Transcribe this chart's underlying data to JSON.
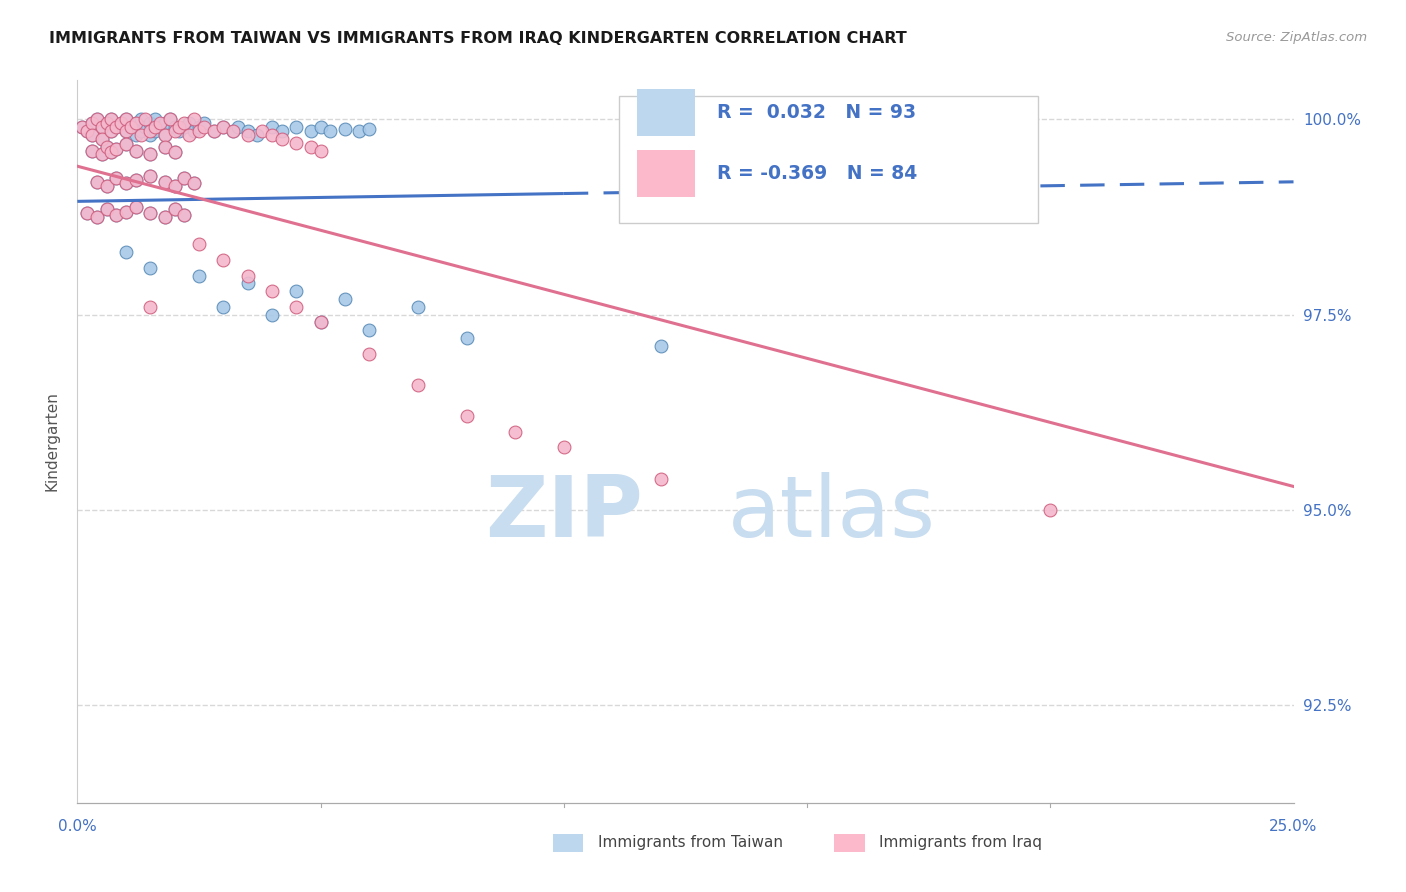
{
  "title": "IMMIGRANTS FROM TAIWAN VS IMMIGRANTS FROM IRAQ KINDERGARTEN CORRELATION CHART",
  "source_text": "Source: ZipAtlas.com",
  "ylabel": "Kindergarten",
  "xlim": [
    0.0,
    0.25
  ],
  "ylim": [
    0.9125,
    1.005
  ],
  "y_ticks": [
    0.925,
    0.95,
    0.975,
    1.0
  ],
  "x_ticks": [
    0.0,
    0.05,
    0.1,
    0.15,
    0.2,
    0.25
  ],
  "taiwan_R": 0.032,
  "taiwan_N": 93,
  "iraq_R": -0.369,
  "iraq_N": 84,
  "taiwan_color": "#A8C8E8",
  "taiwan_edge_color": "#5B8DB8",
  "iraq_color": "#F5B8CC",
  "iraq_edge_color": "#D06080",
  "taiwan_line_color": "#4472C4",
  "iraq_line_color": "#E07090",
  "legend_taiwan_box": "#BDD7EE",
  "legend_iraq_box": "#FCB9CC",
  "taiwan_line_y0": 0.9895,
  "taiwan_line_y1": 0.992,
  "iraq_line_y0": 0.994,
  "iraq_line_y1": 0.953,
  "taiwan_x": [
    0.001,
    0.002,
    0.003,
    0.003,
    0.004,
    0.005,
    0.005,
    0.006,
    0.007,
    0.007,
    0.008,
    0.009,
    0.01,
    0.01,
    0.011,
    0.012,
    0.012,
    0.013,
    0.013,
    0.014,
    0.015,
    0.015,
    0.016,
    0.016,
    0.017,
    0.018,
    0.018,
    0.019,
    0.02,
    0.021,
    0.022,
    0.023,
    0.024,
    0.025,
    0.026,
    0.028,
    0.03,
    0.032,
    0.033,
    0.035,
    0.037,
    0.04,
    0.042,
    0.045,
    0.048,
    0.05,
    0.052,
    0.055,
    0.058,
    0.06,
    0.003,
    0.005,
    0.006,
    0.007,
    0.008,
    0.01,
    0.012,
    0.015,
    0.018,
    0.02,
    0.004,
    0.006,
    0.008,
    0.01,
    0.012,
    0.015,
    0.018,
    0.02,
    0.022,
    0.024,
    0.002,
    0.004,
    0.006,
    0.008,
    0.01,
    0.012,
    0.015,
    0.018,
    0.02,
    0.022,
    0.05,
    0.08,
    0.12,
    0.03,
    0.04,
    0.06,
    0.01,
    0.015,
    0.025,
    0.035,
    0.045,
    0.055,
    0.07
  ],
  "taiwan_y": [
    0.999,
    0.9985,
    0.9995,
    0.998,
    1.0,
    0.999,
    0.9975,
    0.9995,
    1.0,
    0.9985,
    0.999,
    0.9995,
    1.0,
    0.9985,
    0.999,
    0.9995,
    0.998,
    1.0,
    0.9985,
    0.999,
    0.9995,
    0.998,
    1.0,
    0.9985,
    0.999,
    0.9995,
    0.998,
    1.0,
    0.999,
    0.9985,
    0.999,
    0.9995,
    0.9985,
    0.999,
    0.9995,
    0.9985,
    0.999,
    0.9985,
    0.999,
    0.9985,
    0.998,
    0.999,
    0.9985,
    0.999,
    0.9985,
    0.999,
    0.9985,
    0.9988,
    0.9985,
    0.9988,
    0.996,
    0.9955,
    0.9965,
    0.9958,
    0.9962,
    0.9968,
    0.996,
    0.9955,
    0.9965,
    0.9958,
    0.992,
    0.9915,
    0.9925,
    0.9918,
    0.9922,
    0.9928,
    0.992,
    0.9915,
    0.9925,
    0.9918,
    0.988,
    0.9875,
    0.9885,
    0.9878,
    0.9882,
    0.9888,
    0.988,
    0.9875,
    0.9885,
    0.9878,
    0.974,
    0.972,
    0.971,
    0.976,
    0.975,
    0.973,
    0.983,
    0.981,
    0.98,
    0.979,
    0.978,
    0.977,
    0.976
  ],
  "iraq_x": [
    0.001,
    0.002,
    0.003,
    0.003,
    0.004,
    0.005,
    0.005,
    0.006,
    0.007,
    0.007,
    0.008,
    0.009,
    0.01,
    0.01,
    0.011,
    0.012,
    0.013,
    0.014,
    0.015,
    0.016,
    0.017,
    0.018,
    0.019,
    0.02,
    0.021,
    0.022,
    0.023,
    0.024,
    0.025,
    0.026,
    0.028,
    0.03,
    0.032,
    0.035,
    0.038,
    0.04,
    0.042,
    0.045,
    0.048,
    0.05,
    0.003,
    0.005,
    0.006,
    0.007,
    0.008,
    0.01,
    0.012,
    0.015,
    0.018,
    0.02,
    0.004,
    0.006,
    0.008,
    0.01,
    0.012,
    0.015,
    0.018,
    0.02,
    0.022,
    0.024,
    0.002,
    0.004,
    0.006,
    0.008,
    0.01,
    0.012,
    0.015,
    0.018,
    0.02,
    0.022,
    0.025,
    0.03,
    0.035,
    0.04,
    0.045,
    0.05,
    0.06,
    0.07,
    0.08,
    0.09,
    0.1,
    0.12,
    0.2,
    0.015
  ],
  "iraq_y": [
    0.999,
    0.9985,
    0.9995,
    0.998,
    1.0,
    0.999,
    0.9975,
    0.9995,
    1.0,
    0.9985,
    0.999,
    0.9995,
    1.0,
    0.9985,
    0.999,
    0.9995,
    0.998,
    1.0,
    0.9985,
    0.999,
    0.9995,
    0.998,
    1.0,
    0.9985,
    0.999,
    0.9995,
    0.998,
    1.0,
    0.9985,
    0.999,
    0.9985,
    0.999,
    0.9985,
    0.998,
    0.9985,
    0.998,
    0.9975,
    0.997,
    0.9965,
    0.996,
    0.996,
    0.9955,
    0.9965,
    0.9958,
    0.9962,
    0.9968,
    0.996,
    0.9955,
    0.9965,
    0.9958,
    0.992,
    0.9915,
    0.9925,
    0.9918,
    0.9922,
    0.9928,
    0.992,
    0.9915,
    0.9925,
    0.9918,
    0.988,
    0.9875,
    0.9885,
    0.9878,
    0.9882,
    0.9888,
    0.988,
    0.9875,
    0.9885,
    0.9878,
    0.984,
    0.982,
    0.98,
    0.978,
    0.976,
    0.974,
    0.97,
    0.966,
    0.962,
    0.96,
    0.958,
    0.954,
    0.95,
    0.976
  ],
  "watermark_zip": "ZIP",
  "watermark_atlas": "atlas",
  "watermark_color": "#C8DDEF",
  "background_color": "#FFFFFF",
  "grid_color": "#D8D8D8",
  "tick_color": "#4472C4",
  "title_color": "#1A1A1A",
  "legend_text_color": "#4472C4"
}
